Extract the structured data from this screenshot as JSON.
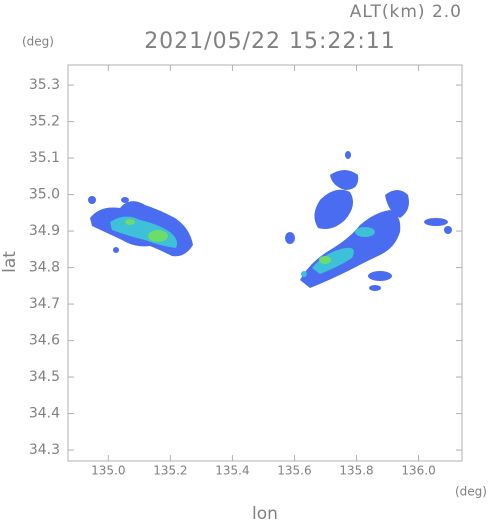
{
  "chart_data": {
    "type": "map",
    "header": "ALT(km)  2.0",
    "title": "2021/05/22 15:22:11",
    "y_unit": "(deg)",
    "x_unit": "(deg)",
    "xlabel": "lon",
    "ylabel": "lat",
    "xlim": [
      134.87,
      136.14
    ],
    "ylim": [
      34.27,
      35.355
    ],
    "xticks": [
      {
        "value": 135.0,
        "label": "135.0"
      },
      135.2,
      135.4,
      135.6,
      135.8,
      {
        "value": 136.0,
        "label": "136.0"
      }
    ],
    "yticks": [
      34.3,
      34.4,
      34.5,
      34.6,
      34.7,
      34.8,
      34.9,
      {
        "value": 35.0,
        "label": "35.0"
      },
      35.1,
      35.2,
      35.3
    ]
  }
}
